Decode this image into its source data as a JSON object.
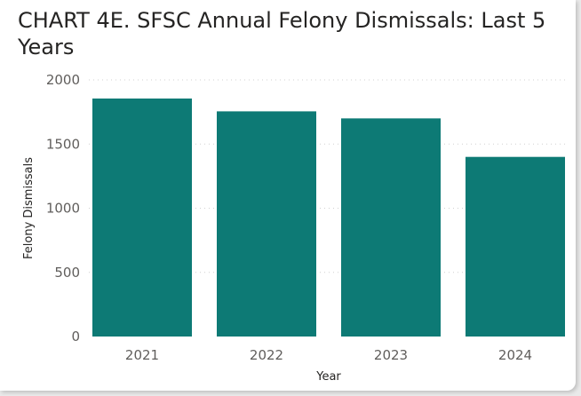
{
  "chart_data": {
    "type": "bar",
    "title": "CHART 4E. SFSC Annual Felony Dismissals: Last 5 Years",
    "categories": [
      "2021",
      "2022",
      "2023",
      "2024"
    ],
    "values": [
      1855,
      1755,
      1700,
      1400
    ],
    "xlabel": "Year",
    "ylabel": "Felony Dismissals",
    "ylim": [
      0,
      2000
    ],
    "yticks": [
      "0",
      "500",
      "1000",
      "1500",
      "2000"
    ],
    "grid": true,
    "bar_color": "#0d7a75",
    "grid_color": "#d0d0d0"
  }
}
